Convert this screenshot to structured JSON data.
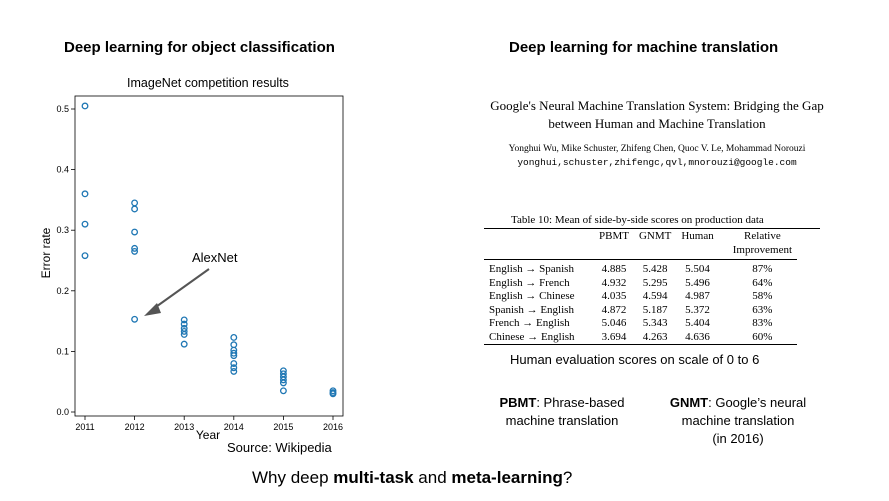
{
  "left_heading": "Deep learning for object classification",
  "right_heading": "Deep learning for machine translation",
  "chart_data": {
    "type": "scatter",
    "title": "ImageNet competition results",
    "xlabel": "Year",
    "ylabel": "Error rate",
    "x_ticks": [
      "2011",
      "2012",
      "2013",
      "2014",
      "2015",
      "2016"
    ],
    "y_ticks": [
      "0.0",
      "0.1",
      "0.2",
      "0.3",
      "0.4",
      "0.5"
    ],
    "xlim": [
      2011,
      2016
    ],
    "ylim": [
      0,
      0.52
    ],
    "grid": false,
    "marker_color": "#1f77b4",
    "points": [
      {
        "x": 2011,
        "y": 0.505
      },
      {
        "x": 2011,
        "y": 0.36
      },
      {
        "x": 2011,
        "y": 0.31
      },
      {
        "x": 2011,
        "y": 0.258
      },
      {
        "x": 2012,
        "y": 0.345
      },
      {
        "x": 2012,
        "y": 0.335
      },
      {
        "x": 2012,
        "y": 0.297
      },
      {
        "x": 2012,
        "y": 0.27
      },
      {
        "x": 2012,
        "y": 0.265
      },
      {
        "x": 2012,
        "y": 0.153
      },
      {
        "x": 2013,
        "y": 0.152
      },
      {
        "x": 2013,
        "y": 0.145
      },
      {
        "x": 2013,
        "y": 0.138
      },
      {
        "x": 2013,
        "y": 0.133
      },
      {
        "x": 2013,
        "y": 0.128
      },
      {
        "x": 2013,
        "y": 0.112
      },
      {
        "x": 2014,
        "y": 0.123
      },
      {
        "x": 2014,
        "y": 0.111
      },
      {
        "x": 2014,
        "y": 0.102
      },
      {
        "x": 2014,
        "y": 0.097
      },
      {
        "x": 2014,
        "y": 0.093
      },
      {
        "x": 2014,
        "y": 0.08
      },
      {
        "x": 2014,
        "y": 0.073
      },
      {
        "x": 2014,
        "y": 0.067
      },
      {
        "x": 2015,
        "y": 0.068
      },
      {
        "x": 2015,
        "y": 0.063
      },
      {
        "x": 2015,
        "y": 0.058
      },
      {
        "x": 2015,
        "y": 0.053
      },
      {
        "x": 2015,
        "y": 0.048
      },
      {
        "x": 2015,
        "y": 0.035
      },
      {
        "x": 2016,
        "y": 0.035
      },
      {
        "x": 2016,
        "y": 0.032
      },
      {
        "x": 2016,
        "y": 0.03
      }
    ],
    "annotation": {
      "text": "AlexNet",
      "target_x": 2012,
      "target_y": 0.153
    }
  },
  "source_label": "Source: Wikipedia",
  "paper": {
    "title_line1": "Google's Neural Machine Translation System: Bridging the Gap",
    "title_line2": "between Human and Machine Translation",
    "authors": "Yonghui Wu, Mike Schuster, Zhifeng Chen, Quoc V. Le, Mohammad Norouzi",
    "emails": "yonghui,schuster,zhifengc,qvl,mnorouzi@google.com"
  },
  "table": {
    "caption": "Table 10: Mean of side-by-side scores on production data",
    "headers": [
      "",
      "PBMT",
      "GNMT",
      "Human",
      "Relative"
    ],
    "header2": "Improvement",
    "rows": [
      [
        "English → Spanish",
        "4.885",
        "5.428",
        "5.504",
        "87%"
      ],
      [
        "English → French",
        "4.932",
        "5.295",
        "5.496",
        "64%"
      ],
      [
        "English → Chinese",
        "4.035",
        "4.594",
        "4.987",
        "58%"
      ],
      [
        "Spanish → English",
        "4.872",
        "5.187",
        "5.372",
        "63%"
      ],
      [
        "French → English",
        "5.046",
        "5.343",
        "5.404",
        "83%"
      ],
      [
        "Chinese → English",
        "3.694",
        "4.263",
        "4.636",
        "60%"
      ]
    ]
  },
  "human_eval_note": "Human evaluation scores on scale of 0 to 6",
  "pbmt_def": {
    "term": "PBMT",
    "rest_line1": ": Phrase-based",
    "line2": "machine translation"
  },
  "gnmt_def": {
    "term": "GNMT",
    "rest_line1": ": Google’s neural",
    "line2": "machine translation",
    "line3": "(in 2016)"
  },
  "footer": {
    "pre": "Why deep ",
    "bold1": "multi-task",
    "mid": " and ",
    "bold2": "meta-learning",
    "post": "?"
  }
}
